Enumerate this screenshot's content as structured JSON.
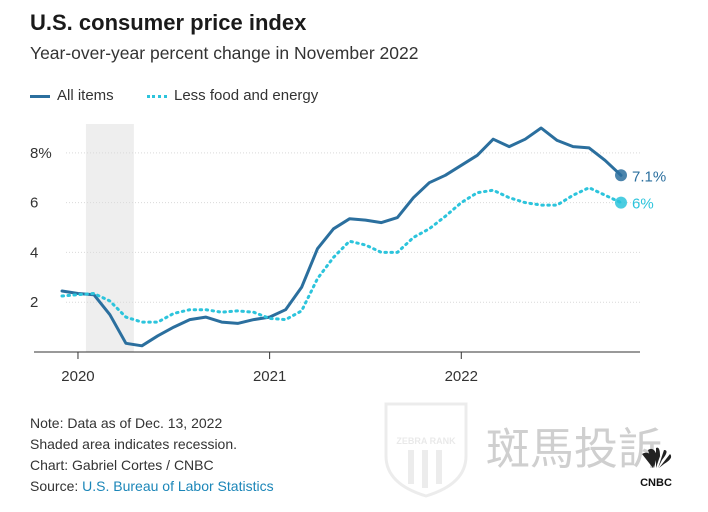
{
  "title": "U.S. consumer price index",
  "subtitle": "Year-over-year percent change in November 2022",
  "legend": {
    "all_items": "All items",
    "less_food_energy": "Less food and energy"
  },
  "colors": {
    "all_items": "#2b6f9e",
    "less_food_energy": "#2cc4dc",
    "recession": "#eeeeee",
    "gridline": "#d9d9d9",
    "axis": "#333333"
  },
  "notes": {
    "line1": "Note: Data as of Dec. 13, 2022",
    "line2": "Shaded area indicates recession.",
    "credit": "Chart: Gabriel Cortes / CNBC",
    "source_prefix": "Source: ",
    "source_link": "U.S. Bureau of Labor Statistics"
  },
  "watermark": {
    "badge_text": "ZEBRA RANK",
    "chinese_text": "斑馬投訴",
    "logo_text": "CNBC"
  },
  "chart_data": {
    "type": "line",
    "x_start": "2019-12",
    "x_end": "2022-11",
    "x_ticks": [
      {
        "date": "2020-01",
        "label": "2020"
      },
      {
        "date": "2021-01",
        "label": "2021"
      },
      {
        "date": "2022-01",
        "label": "2022"
      }
    ],
    "y_ticks": [
      {
        "value": 2,
        "label": "2"
      },
      {
        "value": 4,
        "label": "4"
      },
      {
        "value": 6,
        "label": "6"
      },
      {
        "value": 8,
        "label": "8%"
      }
    ],
    "ylim": [
      0,
      9.4
    ],
    "grid": true,
    "recession": {
      "start": "2020-02",
      "end": "2020-04"
    },
    "series": [
      {
        "name": "All items",
        "style": "solid",
        "points": [
          [
            "2019-12",
            2.45
          ],
          [
            "2020-01",
            2.35
          ],
          [
            "2020-02",
            2.3
          ],
          [
            "2020-03",
            1.5
          ],
          [
            "2020-04",
            0.35
          ],
          [
            "2020-05",
            0.25
          ],
          [
            "2020-06",
            0.65
          ],
          [
            "2020-07",
            1.0
          ],
          [
            "2020-08",
            1.3
          ],
          [
            "2020-09",
            1.4
          ],
          [
            "2020-10",
            1.2
          ],
          [
            "2020-11",
            1.15
          ],
          [
            "2020-12",
            1.3
          ],
          [
            "2021-01",
            1.4
          ],
          [
            "2021-02",
            1.7
          ],
          [
            "2021-03",
            2.6
          ],
          [
            "2021-04",
            4.15
          ],
          [
            "2021-05",
            4.95
          ],
          [
            "2021-06",
            5.35
          ],
          [
            "2021-07",
            5.3
          ],
          [
            "2021-08",
            5.2
          ],
          [
            "2021-09",
            5.4
          ],
          [
            "2021-10",
            6.2
          ],
          [
            "2021-11",
            6.8
          ],
          [
            "2021-12",
            7.1
          ],
          [
            "2022-01",
            7.5
          ],
          [
            "2022-02",
            7.9
          ],
          [
            "2022-03",
            8.55
          ],
          [
            "2022-04",
            8.25
          ],
          [
            "2022-05",
            8.55
          ],
          [
            "2022-06",
            9.0
          ],
          [
            "2022-07",
            8.5
          ],
          [
            "2022-08",
            8.25
          ],
          [
            "2022-09",
            8.2
          ],
          [
            "2022-10",
            7.7
          ],
          [
            "2022-11",
            7.1
          ]
        ],
        "end_label": "7.1%"
      },
      {
        "name": "Less food and energy",
        "style": "dotted",
        "points": [
          [
            "2019-12",
            2.25
          ],
          [
            "2020-01",
            2.3
          ],
          [
            "2020-02",
            2.35
          ],
          [
            "2020-03",
            2.05
          ],
          [
            "2020-04",
            1.4
          ],
          [
            "2020-05",
            1.2
          ],
          [
            "2020-06",
            1.2
          ],
          [
            "2020-07",
            1.55
          ],
          [
            "2020-08",
            1.7
          ],
          [
            "2020-09",
            1.7
          ],
          [
            "2020-10",
            1.6
          ],
          [
            "2020-11",
            1.65
          ],
          [
            "2020-12",
            1.6
          ],
          [
            "2021-01",
            1.35
          ],
          [
            "2021-02",
            1.3
          ],
          [
            "2021-03",
            1.65
          ],
          [
            "2021-04",
            2.95
          ],
          [
            "2021-05",
            3.8
          ],
          [
            "2021-06",
            4.45
          ],
          [
            "2021-07",
            4.3
          ],
          [
            "2021-08",
            4.0
          ],
          [
            "2021-09",
            4.0
          ],
          [
            "2021-10",
            4.6
          ],
          [
            "2021-11",
            4.95
          ],
          [
            "2021-12",
            5.45
          ],
          [
            "2022-01",
            6.0
          ],
          [
            "2022-02",
            6.4
          ],
          [
            "2022-03",
            6.5
          ],
          [
            "2022-04",
            6.2
          ],
          [
            "2022-05",
            6.0
          ],
          [
            "2022-06",
            5.9
          ],
          [
            "2022-07",
            5.9
          ],
          [
            "2022-08",
            6.3
          ],
          [
            "2022-09",
            6.6
          ],
          [
            "2022-10",
            6.3
          ],
          [
            "2022-11",
            6.0
          ]
        ],
        "end_label": "6%"
      }
    ]
  }
}
